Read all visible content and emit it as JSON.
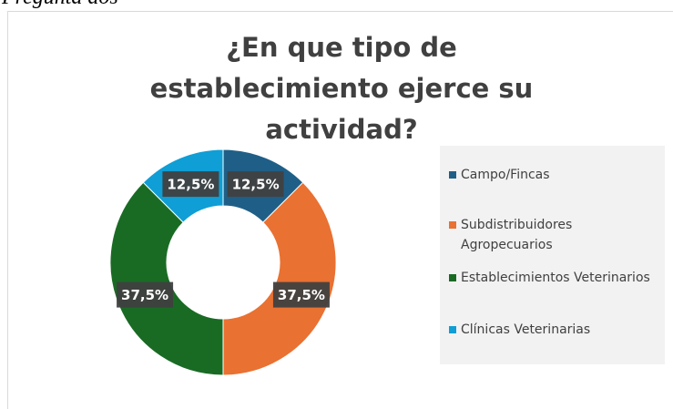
{
  "heading": "Pregunta dos",
  "chart_data": {
    "type": "doughnut",
    "title": "¿En que tipo de establecimiento ejerce su actividad?",
    "categories": [
      "Campo/Fincas",
      "Subdistribuidores Agropecuarios",
      "Establecimientos Veterinarios",
      "Clínicas Veterinarias"
    ],
    "values": [
      12.5,
      37.5,
      37.5,
      12.5
    ],
    "value_labels": [
      "12,5%",
      "37,5%",
      "37,5%",
      "12,5%"
    ],
    "colors": [
      "#1f5f87",
      "#e97132",
      "#196b24",
      "#0f9ed5"
    ],
    "legend": "right"
  }
}
